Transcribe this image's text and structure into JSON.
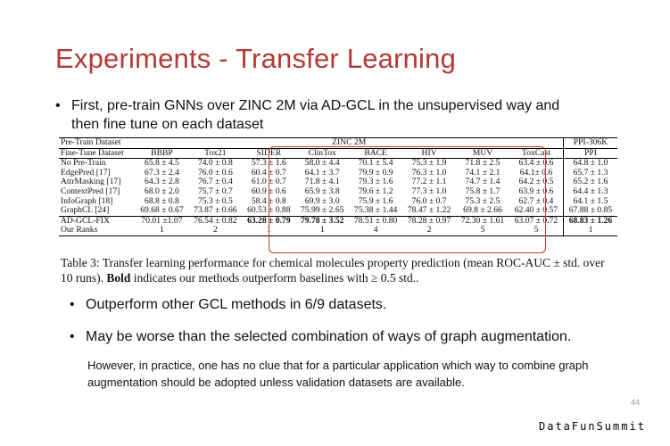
{
  "slide": {
    "title": "Experiments - Transfer Learning",
    "bullet1": "First, pre-train GNNs over ZINC 2M via AD-GCL in the unsupervised way and then fine tune on each dataset",
    "bullet2": "Outperform other GCL methods in 6/9 datasets.",
    "bullet3": "May be worse than the selected combination of ways of graph augmentation.",
    "note": "However, in practice, one has no clue that for a particular application which way to combine graph augmentation should be adopted unless validation datasets are available.",
    "page_number": "44",
    "logo_text": "DataFunSummit",
    "bullet_glyph": "•",
    "highlight_color": "#c8332e",
    "title_color": "#b23a38"
  },
  "table": {
    "pretrain_label": "Pre-Train Dataset",
    "pretrain_zinc": "ZINC 2M",
    "pretrain_ppi": "PPI-306K",
    "finetune_label": "Fine-Tune Dataset",
    "columns": [
      "BBBP",
      "Tox21",
      "SIDER",
      "ClinTox",
      "BACE",
      "HIV",
      "MUV",
      "ToxCast",
      "PPI"
    ],
    "rows": [
      {
        "name": "No Pre-Train",
        "cells": [
          "65.8 ± 4.5",
          "74.0 ± 0.8",
          "57.3 ± 1.6",
          "58.0 ± 4.4",
          "70.1 ± 5.4",
          "75.3 ± 1.9",
          "71.8 ± 2.5",
          "63.4 ± 0.6",
          "64.8 ± 1.0"
        ]
      },
      {
        "name": "EdgePred [17]",
        "cells": [
          "67.3 ± 2.4",
          "76.0 ± 0.6",
          "60.4 ± 0.7",
          "64.1 ± 3.7",
          "79.9 ± 0.9",
          "76.3 ± 1.0",
          "74.1 ± 2.1",
          "64.1± 0.6",
          "65.7 ± 1.3"
        ]
      },
      {
        "name": "AttrMasking [17]",
        "cells": [
          "64.3 ± 2.8",
          "76.7 ± 0.4",
          "61.0 ± 0.7",
          "71.8 ± 4.1",
          "79.3 ± 1.6",
          "77.2 ± 1.1",
          "74.7 ± 1.4",
          "64.2 ± 0.5",
          "65.2 ± 1.6"
        ]
      },
      {
        "name": "ContextPred [17]",
        "cells": [
          "68.0 ± 2.0",
          "75.7 ± 0.7",
          "60.9 ± 0.6",
          "65.9 ± 3.8",
          "79.6 ± 1.2",
          "77.3 ± 1.0",
          "75.8 ± 1.7",
          "63.9 ± 0.6",
          "64.4 ± 1.3"
        ]
      },
      {
        "name": "InfoGraph [18]",
        "cells": [
          "68.8 ± 0.8",
          "75.3 ± 0.5",
          "58.4 ± 0.8",
          "69.9 ± 3.0",
          "75.9 ± 1.6",
          "76.0 ± 0.7",
          "75.3 ± 2.5",
          "62.7 ± 0.4",
          "64.1 ± 1.5"
        ]
      },
      {
        "name": "GraphCL [24]",
        "cells": [
          "69.68 ± 0.67",
          "73.87 ± 0.66",
          "60.53 ± 0.88",
          "75.99 ± 2.65",
          "75.38 ± 1.44",
          "78.47 ± 1.22",
          "69.8 ± 2.66",
          "62.40 ± 0.57",
          "67.88 ± 0.85"
        ]
      }
    ],
    "ours": {
      "name": "AD-GCL-FIX",
      "cells": [
        "70.01 ±1.07",
        "76.54 ± 0.82",
        "63.28 ± 0.79",
        "79.78 ± 3.52",
        "78.51 ± 0.80",
        "78.28 ± 0.97",
        "72.30 ± 1.61",
        "63.07 ± 0.72",
        "68.83 ± 1.26"
      ],
      "bold": [
        false,
        false,
        true,
        true,
        false,
        false,
        false,
        false,
        true
      ]
    },
    "ranks": {
      "name": "Our Ranks",
      "cells": [
        "1",
        "2",
        "1",
        "1",
        "4",
        "2",
        "5",
        "5",
        "1"
      ]
    }
  },
  "caption": {
    "prefix": "Table 3:",
    "text1": " Transfer learning performance for chemical molecules property prediction (mean ROC-AUC ± std. over 10 runs). ",
    "bold": "Bold",
    "text2": " indicates our methods outperform baselines with ≥ 0.5 std.."
  }
}
